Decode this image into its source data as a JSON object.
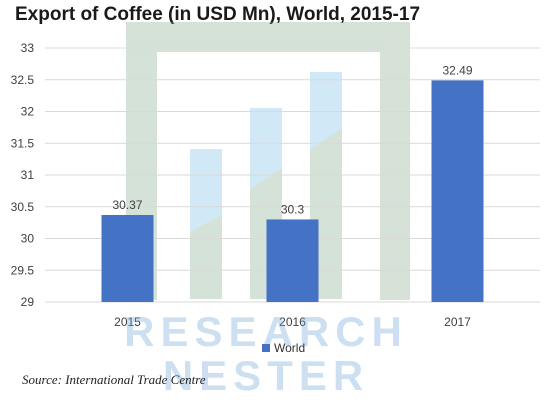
{
  "chart_data": {
    "type": "bar",
    "title": "Export of Coffee (in USD Mn), World, 2015-17",
    "categories": [
      "2015",
      "2016",
      "2017"
    ],
    "series": [
      {
        "name": "World",
        "values": [
          30.37,
          30.3,
          32.49
        ],
        "color": "#4472C4"
      }
    ],
    "data_labels": [
      "30.37",
      "30.3",
      "32.49"
    ],
    "y_ticks": [
      "29",
      "29.5",
      "30",
      "30.5",
      "31",
      "31.5",
      "32",
      "32.5",
      "33"
    ],
    "ylim": [
      29,
      33
    ],
    "xlabel": "",
    "ylabel": "",
    "grid": true,
    "legend_position": "bottom"
  },
  "source": "Source: International Trade Centre",
  "watermark": {
    "text_line1": "RESEARCH",
    "text_line2": "NESTER"
  }
}
